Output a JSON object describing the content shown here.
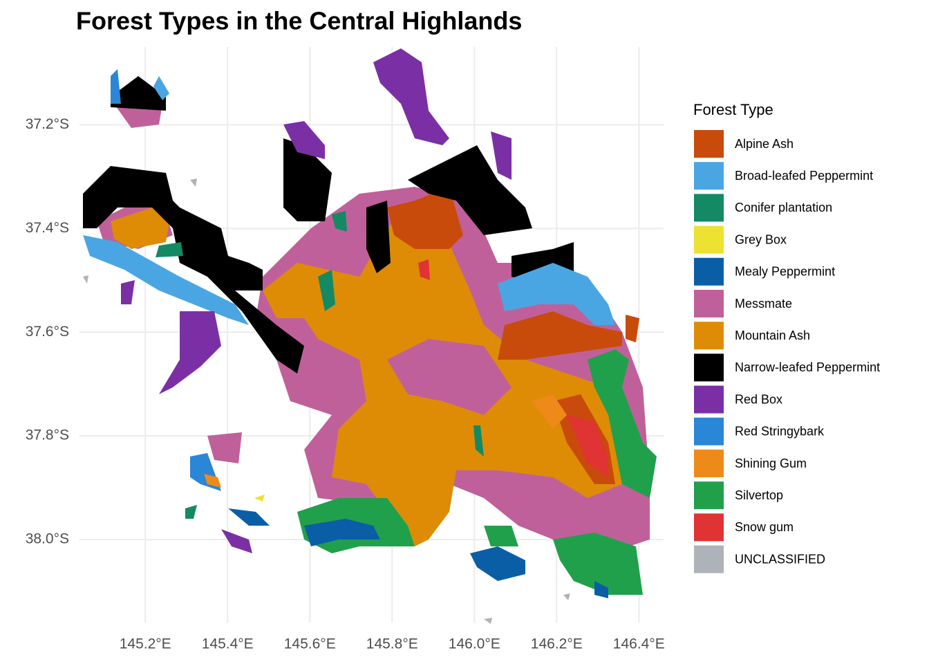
{
  "chart_data": {
    "type": "map",
    "title": "Forest Types in the Central Highlands",
    "xlim": [
      145.04,
      146.46
    ],
    "ylim": [
      -38.16,
      -37.05
    ],
    "xticks": [
      {
        "value": 145.2,
        "label": "145.2°E"
      },
      {
        "value": 145.4,
        "label": "145.4°E"
      },
      {
        "value": 145.6,
        "label": "145.6°E"
      },
      {
        "value": 145.8,
        "label": "145.8°E"
      },
      {
        "value": 146.0,
        "label": "146.0°E"
      },
      {
        "value": 146.2,
        "label": "146.2°E"
      },
      {
        "value": 146.4,
        "label": "146.4°E"
      }
    ],
    "yticks": [
      {
        "value": -37.2,
        "label": "37.2°S"
      },
      {
        "value": -37.4,
        "label": "37.4°S"
      },
      {
        "value": -37.6,
        "label": "37.6°S"
      },
      {
        "value": -37.8,
        "label": "37.8°S"
      },
      {
        "value": -38.0,
        "label": "38.0°S"
      }
    ],
    "grid": true,
    "legend": {
      "title": "Forest Type",
      "position": "right",
      "items": [
        {
          "name": "Alpine Ash",
          "color": "#c84b0b"
        },
        {
          "name": "Broad-leafed Peppermint",
          "color": "#4aa6e3"
        },
        {
          "name": "Conifer plantation",
          "color": "#138a63"
        },
        {
          "name": "Grey Box",
          "color": "#ede132"
        },
        {
          "name": "Mealy Peppermint",
          "color": "#0a5ea6"
        },
        {
          "name": "Messmate",
          "color": "#c0609a"
        },
        {
          "name": "Mountain Ash",
          "color": "#de8c06"
        },
        {
          "name": "Narrow-leafed Peppermint",
          "color": "#000000"
        },
        {
          "name": "Red Box",
          "color": "#7b2fa5"
        },
        {
          "name": "Red Stringybark",
          "color": "#2a86d6"
        },
        {
          "name": "Shining Gum",
          "color": "#ee8a1a"
        },
        {
          "name": "Silvertop",
          "color": "#21a04c"
        },
        {
          "name": "Snow gum",
          "color": "#e03333"
        },
        {
          "name": "UNCLASSIFIED",
          "color": "#adb3b8"
        }
      ]
    }
  }
}
